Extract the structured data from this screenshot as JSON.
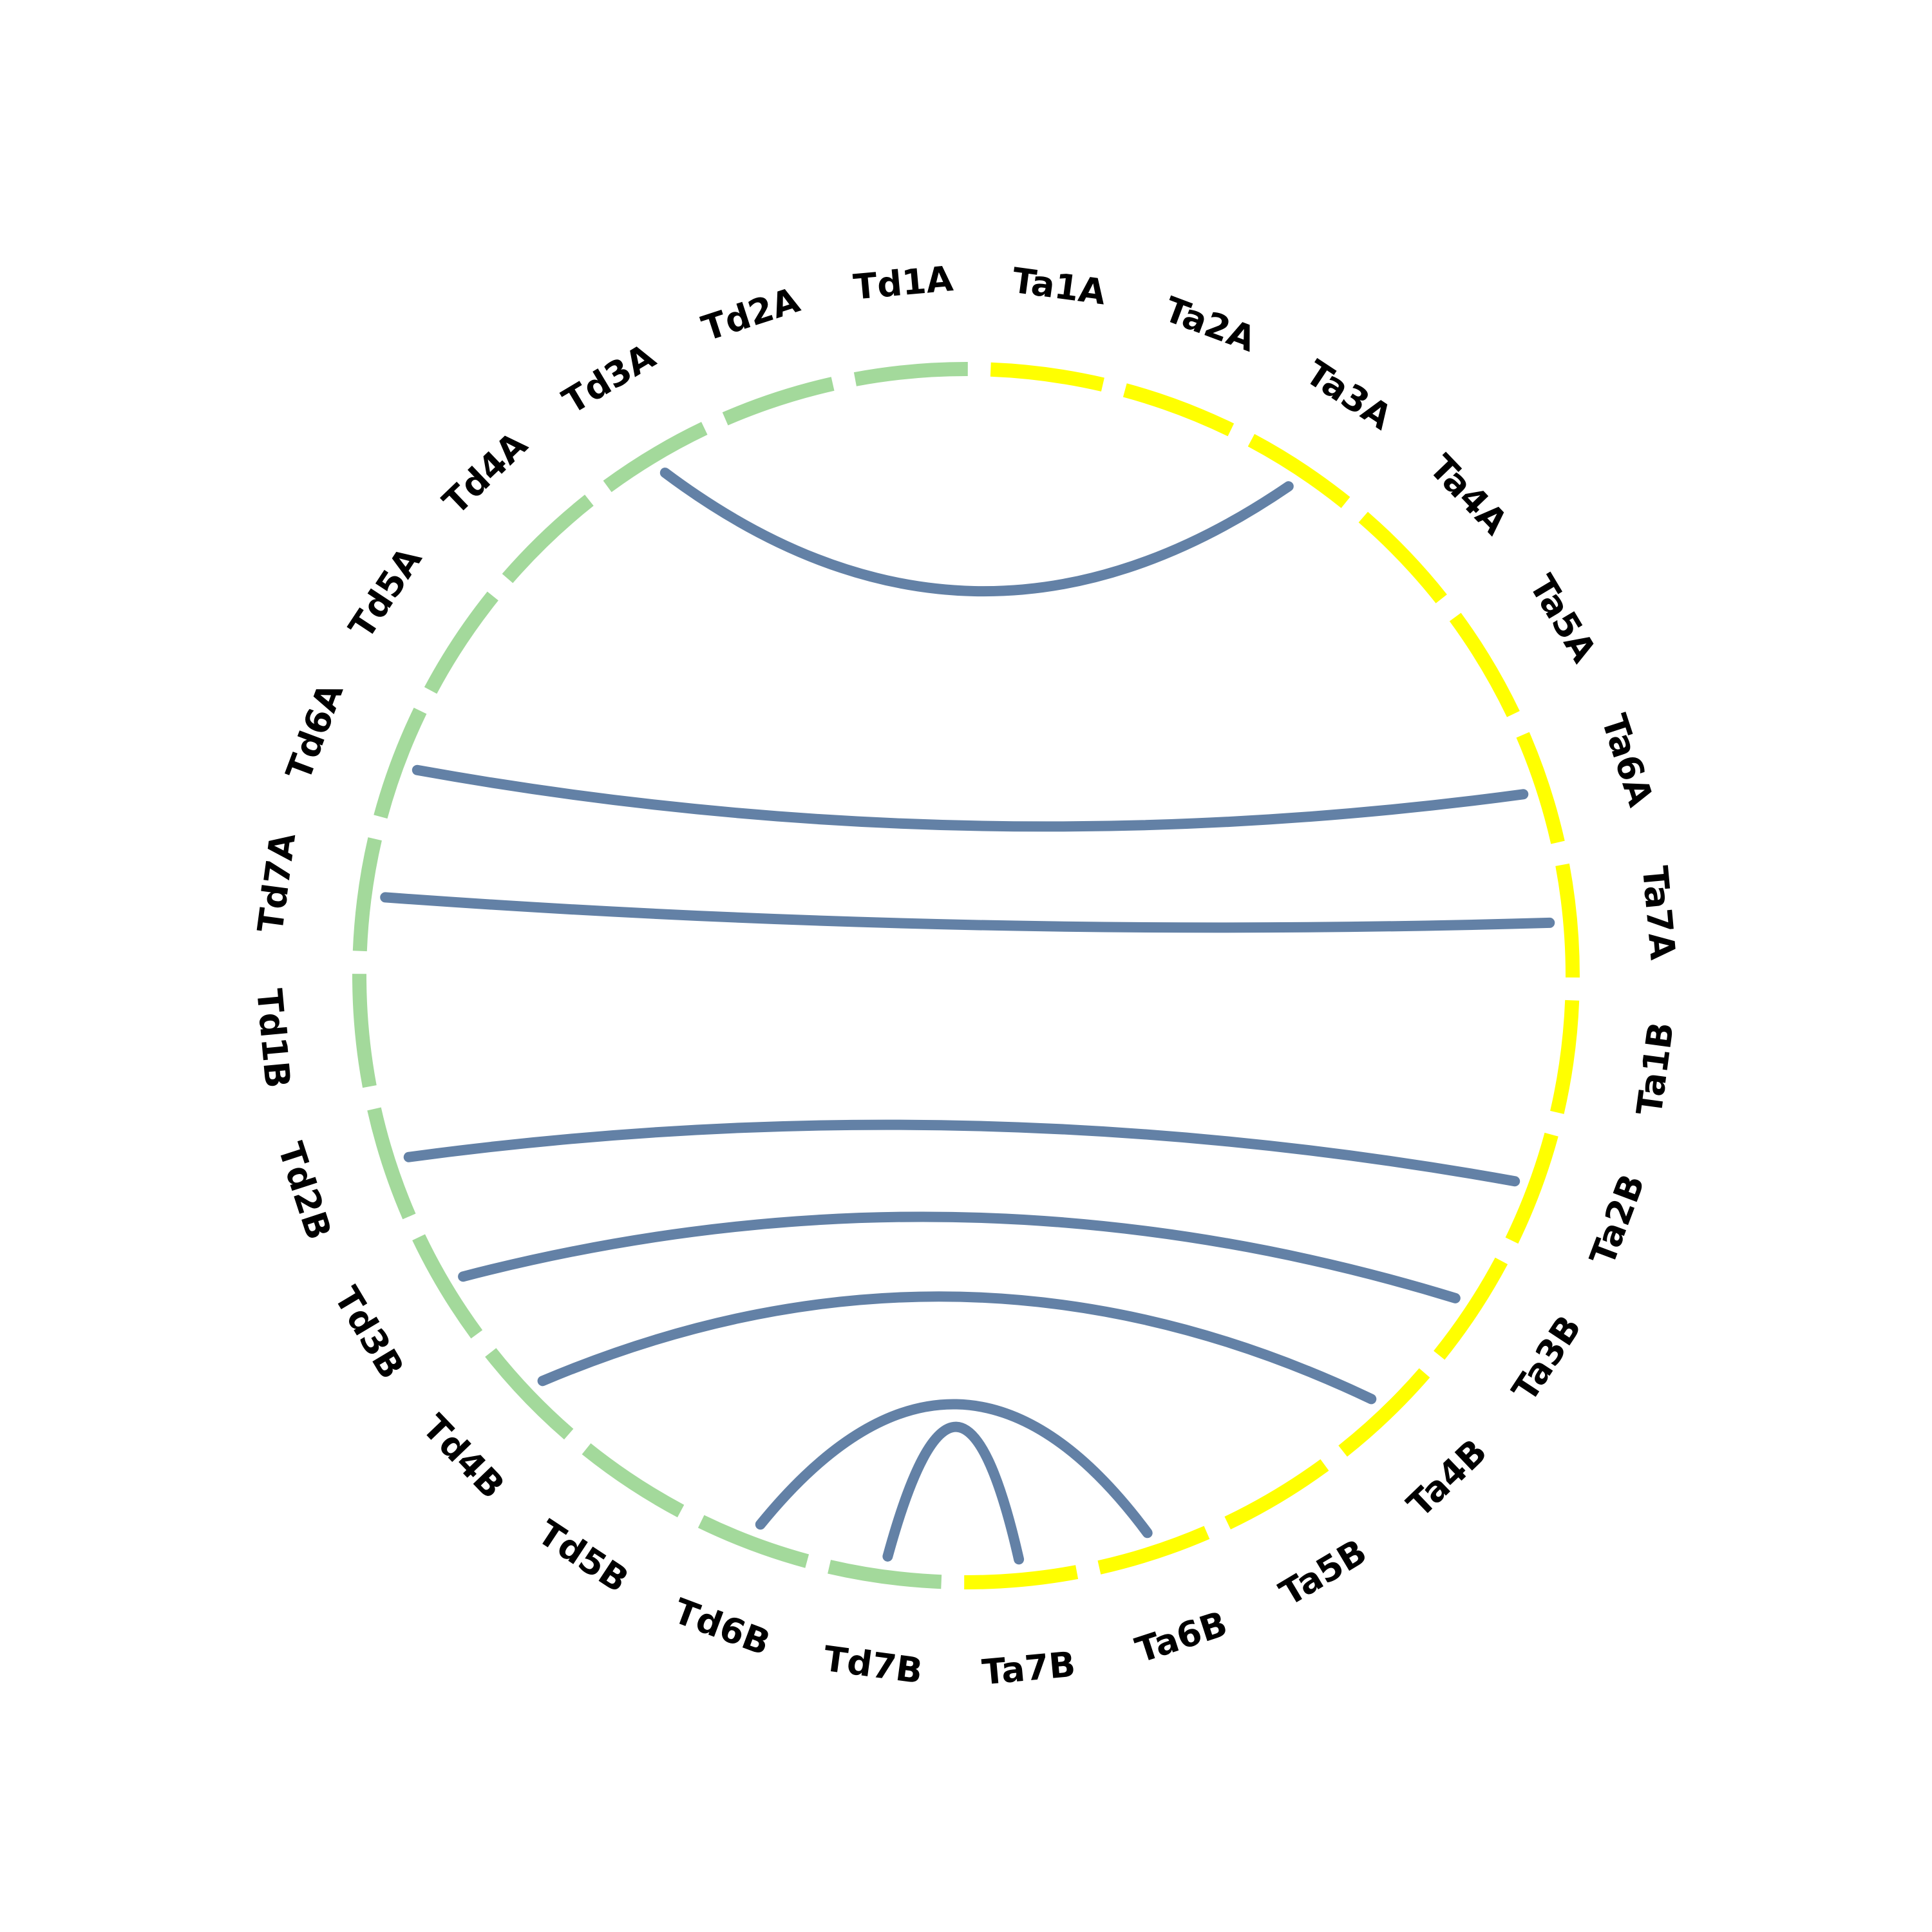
{
  "colors": {
    "td_segment": "#a3d99b",
    "ta_segment": "#ffff00",
    "link": "#6381a6",
    "label": "#000000",
    "background": "#ffffff"
  },
  "chromosomes": [
    {
      "id": "Ta1A",
      "label": "Ta1A",
      "group": "ta"
    },
    {
      "id": "Ta2A",
      "label": "Ta2A",
      "group": "ta"
    },
    {
      "id": "Ta3A",
      "label": "Ta3A",
      "group": "ta"
    },
    {
      "id": "Ta4A",
      "label": "Ta4A",
      "group": "ta"
    },
    {
      "id": "Ta5A",
      "label": "Ta5A",
      "group": "ta"
    },
    {
      "id": "Ta6A",
      "label": "Ta6A",
      "group": "ta"
    },
    {
      "id": "Ta7A",
      "label": "Ta7A",
      "group": "ta"
    },
    {
      "id": "Ta1B",
      "label": "Ta1B",
      "group": "ta"
    },
    {
      "id": "Ta2B",
      "label": "Ta2B",
      "group": "ta"
    },
    {
      "id": "Ta3B",
      "label": "Ta3B",
      "group": "ta"
    },
    {
      "id": "Ta4B",
      "label": "Ta4B",
      "group": "ta"
    },
    {
      "id": "Ta5B",
      "label": "Ta5B",
      "group": "ta"
    },
    {
      "id": "Ta6B",
      "label": "Ta6B",
      "group": "ta"
    },
    {
      "id": "Ta7B",
      "label": "Ta7B",
      "group": "ta"
    },
    {
      "id": "Td7B",
      "label": "Td7B",
      "group": "td"
    },
    {
      "id": "Td6B",
      "label": "Td6B",
      "group": "td"
    },
    {
      "id": "Td5B",
      "label": "Td5B",
      "group": "td"
    },
    {
      "id": "Td4B",
      "label": "Td4B",
      "group": "td"
    },
    {
      "id": "Td3B",
      "label": "Td3B",
      "group": "td"
    },
    {
      "id": "Td2B",
      "label": "Td2B",
      "group": "td"
    },
    {
      "id": "Td1B",
      "label": "Td1B",
      "group": "td"
    },
    {
      "id": "Td7A",
      "label": "Td7A",
      "group": "td"
    },
    {
      "id": "Td6A",
      "label": "Td6A",
      "group": "td"
    },
    {
      "id": "Td5A",
      "label": "Td5A",
      "group": "td"
    },
    {
      "id": "Td4A",
      "label": "Td4A",
      "group": "td"
    },
    {
      "id": "Td3A",
      "label": "Td3A",
      "group": "td"
    },
    {
      "id": "Td2A",
      "label": "Td2A",
      "group": "td"
    },
    {
      "id": "Td1A",
      "label": "Td1A",
      "group": "td"
    }
  ],
  "links": [
    {
      "from": "Td3A",
      "to": "Ta3A"
    },
    {
      "from": "Td6A",
      "to": "Ta6A"
    },
    {
      "from": "Td7A",
      "to": "Ta7A"
    },
    {
      "from": "Td2B",
      "to": "Ta2B"
    },
    {
      "from": "Td3B",
      "to": "Ta3B"
    },
    {
      "from": "Td4B",
      "to": "Ta4B"
    },
    {
      "from": "Td6B",
      "to": "Ta6B"
    },
    {
      "from": "Td7B",
      "to": "Ta7B"
    }
  ]
}
